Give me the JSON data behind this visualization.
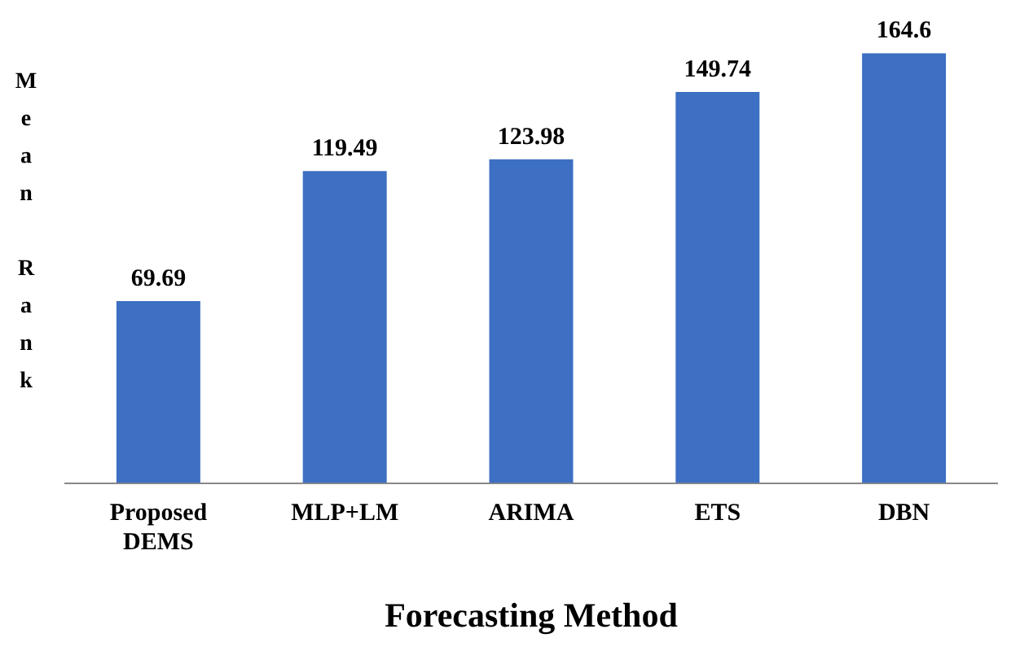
{
  "chart_data": {
    "type": "bar",
    "xlabel": "Forecasting Method",
    "ylabel": "Mean Rank",
    "categories": [
      "Proposed DEMS",
      "MLP+LM",
      "ARIMA",
      "ETS",
      "DBN"
    ],
    "values": [
      69.69,
      119.49,
      123.98,
      149.74,
      164.6
    ],
    "color": "#3d6fc2",
    "data_labels": true,
    "tick_labels": "x",
    "grid": false,
    "legend": false
  }
}
